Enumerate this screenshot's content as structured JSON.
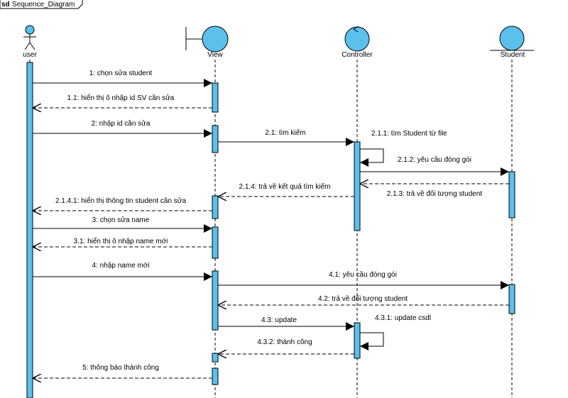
{
  "frame": {
    "keyword": "sd",
    "name": "Sequence_Diagram"
  },
  "lifelines": [
    {
      "id": "user",
      "name": "user",
      "kind": "actor"
    },
    {
      "id": "view",
      "name": "View",
      "kind": "boundary"
    },
    {
      "id": "controller",
      "name": "Controller",
      "kind": "control"
    },
    {
      "id": "student",
      "name": "Student",
      "kind": "entity"
    }
  ],
  "messages": [
    {
      "label": "1: chọn sửa student",
      "from": "user",
      "to": "view",
      "type": "sync"
    },
    {
      "label": "1.1: hiển thị ô nhập id SV cần sửa",
      "from": "view",
      "to": "user",
      "type": "return"
    },
    {
      "label": "2: nhập id cần sửa",
      "from": "user",
      "to": "view",
      "type": "sync"
    },
    {
      "label": "2.1: tìm kiếm",
      "from": "view",
      "to": "controller",
      "type": "sync"
    },
    {
      "label": "2.1.1: tìm Student từ file",
      "from": "controller",
      "to": "controller",
      "type": "self"
    },
    {
      "label": "2.1.2: yêu cầu đóng gói",
      "from": "controller",
      "to": "student",
      "type": "sync"
    },
    {
      "label": "2.1.3: trả về đối tượng student",
      "from": "student",
      "to": "controller",
      "type": "return"
    },
    {
      "label": "2.1.4: trả về kết quả tìm kiếm",
      "from": "controller",
      "to": "view",
      "type": "return"
    },
    {
      "label": "2.1.4.1: hiển thị thông tin student cần sửa",
      "from": "view",
      "to": "user",
      "type": "return"
    },
    {
      "label": "3: chọn sửa name",
      "from": "user",
      "to": "view",
      "type": "sync"
    },
    {
      "label": "3.1: hiển thị ô nhập name  mới",
      "from": "view",
      "to": "user",
      "type": "return"
    },
    {
      "label": "4: nhập name mới",
      "from": "user",
      "to": "view",
      "type": "sync"
    },
    {
      "label": "4.1: yêu cầu đóng gói",
      "from": "view",
      "to": "student",
      "type": "sync"
    },
    {
      "label": "4.2: trả về đối tượng student",
      "from": "student",
      "to": "view",
      "type": "return"
    },
    {
      "label": "4.3: update",
      "from": "view",
      "to": "controller",
      "type": "sync"
    },
    {
      "label": "4.3.1: update csdl",
      "from": "controller",
      "to": "controller",
      "type": "self"
    },
    {
      "label": "4.3.2: thành công",
      "from": "controller",
      "to": "view",
      "type": "return"
    },
    {
      "label": "5: thông báo thành công",
      "from": "view",
      "to": "user",
      "type": "return"
    }
  ],
  "colors": {
    "shape_fill": "#5bc0ec",
    "activation_fill": "#5bc0ec",
    "line": "#000000"
  }
}
